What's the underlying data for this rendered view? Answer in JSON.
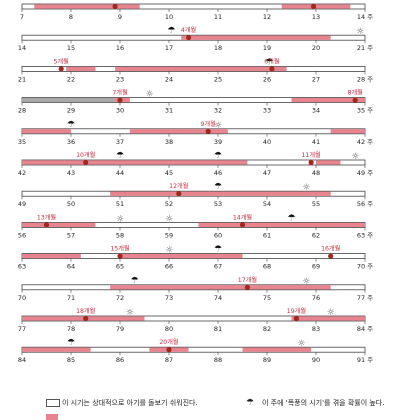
{
  "colors": {
    "pink": "#e8848f",
    "gray": "#a8a8a8",
    "dot": "#a0281e",
    "label": "#c43040",
    "line": "#444"
  },
  "week_unit": "주",
  "rows": [
    {
      "start": 7,
      "ticks": [
        "7",
        "8",
        "9",
        "10",
        "11",
        "12",
        "13",
        "14 주"
      ],
      "segments": [
        {
          "from": 7.25,
          "to": 9.4,
          "kind": "pink"
        },
        {
          "from": 12.3,
          "to": 13.7,
          "kind": "pink"
        }
      ],
      "markers": [
        {
          "at": 8.9,
          "kind": "dot",
          "label": ""
        },
        {
          "at": 12.95,
          "kind": "dot",
          "label": ""
        }
      ]
    },
    {
      "start": 14,
      "ticks": [
        "14",
        "15",
        "16",
        "17",
        "18",
        "19",
        "20",
        "21 주"
      ],
      "segments": [
        {
          "from": 17.25,
          "to": 20.3,
          "kind": "pink"
        }
      ],
      "markers": [
        {
          "at": 17.05,
          "kind": "umbrella"
        },
        {
          "at": 17.4,
          "kind": "dot",
          "label": "4개월"
        },
        {
          "at": 20.9,
          "kind": "sun"
        }
      ]
    },
    {
      "start": 21,
      "ticks": [
        "21",
        "22",
        "23",
        "24",
        "25",
        "26",
        "27",
        "28 주"
      ],
      "segments": [
        {
          "from": 21.9,
          "to": 22.5,
          "kind": "pink"
        },
        {
          "from": 22.9,
          "to": 26.4,
          "kind": "pink"
        }
      ],
      "markers": [
        {
          "at": 21.8,
          "kind": "dot",
          "label": "5개월"
        },
        {
          "at": 26.05,
          "kind": "umbrella"
        },
        {
          "at": 26.1,
          "kind": "dot",
          "label": "6개월"
        }
      ]
    },
    {
      "start": 28,
      "ticks": [
        "28",
        "29",
        "30",
        "31",
        "32",
        "33",
        "34",
        "35 주"
      ],
      "segments": [
        {
          "from": 28.0,
          "to": 29.9,
          "kind": "gray"
        },
        {
          "from": 29.9,
          "to": 30.2,
          "kind": "pink"
        },
        {
          "from": 33.5,
          "to": 35.0,
          "kind": "pink"
        }
      ],
      "markers": [
        {
          "at": 30.0,
          "kind": "dot",
          "label": "7개월"
        },
        {
          "at": 30.6,
          "kind": "sun"
        },
        {
          "at": 34.8,
          "kind": "dot",
          "label": "8개월"
        }
      ]
    },
    {
      "start": 35,
      "ticks": [
        "35",
        "36",
        "37",
        "38",
        "39",
        "40",
        "41",
        "42 주"
      ],
      "segments": [
        {
          "from": 35.0,
          "to": 36.0,
          "kind": "pink"
        },
        {
          "from": 37.2,
          "to": 39.2,
          "kind": "pink"
        },
        {
          "from": 41.3,
          "to": 42.0,
          "kind": "pink"
        }
      ],
      "markers": [
        {
          "at": 36.0,
          "kind": "umbrella"
        },
        {
          "at": 38.8,
          "kind": "dot",
          "label": "9개월"
        },
        {
          "at": 39.0,
          "kind": "sun"
        }
      ]
    },
    {
      "start": 42,
      "ticks": [
        "42",
        "43",
        "44",
        "45",
        "46",
        "47",
        "48",
        "49 주"
      ],
      "segments": [
        {
          "from": 42.0,
          "to": 46.6,
          "kind": "pink"
        },
        {
          "from": 48.0,
          "to": 48.5,
          "kind": "pink"
        }
      ],
      "markers": [
        {
          "at": 43.3,
          "kind": "dot",
          "label": "10개월"
        },
        {
          "at": 44.0,
          "kind": "umbrella"
        },
        {
          "at": 46.0,
          "kind": "umbrella"
        },
        {
          "at": 47.9,
          "kind": "dot",
          "label": "11개월"
        },
        {
          "at": 48.8,
          "kind": "sun"
        }
      ]
    },
    {
      "start": 49,
      "ticks": [
        "49",
        "50",
        "51",
        "52",
        "53",
        "54",
        "55",
        "56 주"
      ],
      "segments": [
        {
          "from": 50.8,
          "to": 55.3,
          "kind": "pink"
        }
      ],
      "markers": [
        {
          "at": 52.2,
          "kind": "dot",
          "label": "12개월"
        },
        {
          "at": 53.0,
          "kind": "umbrella"
        },
        {
          "at": 54.8,
          "kind": "sun"
        }
      ]
    },
    {
      "start": 56,
      "ticks": [
        "56",
        "57",
        "58",
        "59",
        "60",
        "61",
        "62",
        "63 주"
      ],
      "segments": [
        {
          "from": 56.0,
          "to": 57.5,
          "kind": "pink"
        },
        {
          "from": 59.6,
          "to": 63.0,
          "kind": "pink"
        }
      ],
      "markers": [
        {
          "at": 56.5,
          "kind": "dot",
          "label": "13개월"
        },
        {
          "at": 58.0,
          "kind": "sun"
        },
        {
          "at": 59.0,
          "kind": "sun"
        },
        {
          "at": 60.5,
          "kind": "dot",
          "label": "14개월"
        },
        {
          "at": 61.5,
          "kind": "umbrella"
        }
      ]
    },
    {
      "start": 63,
      "ticks": [
        "63",
        "64",
        "65",
        "66",
        "67",
        "68",
        "69",
        "70 주"
      ],
      "segments": [
        {
          "from": 63.0,
          "to": 64.2,
          "kind": "pink"
        },
        {
          "from": 65.0,
          "to": 67.5,
          "kind": "pink"
        }
      ],
      "markers": [
        {
          "at": 65.0,
          "kind": "dot",
          "label": "15개월"
        },
        {
          "at": 66.0,
          "kind": "sun"
        },
        {
          "at": 67.0,
          "kind": "umbrella"
        },
        {
          "at": 69.3,
          "kind": "dot",
          "label": "16개월"
        }
      ]
    },
    {
      "start": 70,
      "ticks": [
        "70",
        "71",
        "72",
        "73",
        "74",
        "75",
        "76",
        "77 주"
      ],
      "segments": [
        {
          "from": 71.8,
          "to": 76.3,
          "kind": "pink"
        }
      ],
      "markers": [
        {
          "at": 72.3,
          "kind": "umbrella"
        },
        {
          "at": 74.6,
          "kind": "dot",
          "label": "17개월"
        },
        {
          "at": 75.8,
          "kind": "sun"
        }
      ]
    },
    {
      "start": 77,
      "ticks": [
        "77",
        "78",
        "79",
        "80",
        "81",
        "82",
        "83",
        "84 주"
      ],
      "segments": [
        {
          "from": 77.0,
          "to": 79.5,
          "kind": "pink"
        },
        {
          "from": 82.5,
          "to": 84.0,
          "kind": "pink"
        }
      ],
      "markers": [
        {
          "at": 78.3,
          "kind": "dot",
          "label": "18개월"
        },
        {
          "at": 79.2,
          "kind": "sun"
        },
        {
          "at": 82.6,
          "kind": "dot",
          "label": "19개월"
        },
        {
          "at": 83.3,
          "kind": "sun"
        }
      ]
    },
    {
      "start": 84,
      "ticks": [
        "84",
        "85",
        "86",
        "87",
        "88",
        "89",
        "90",
        "91 주"
      ],
      "segments": [
        {
          "from": 84.0,
          "to": 85.4,
          "kind": "pink"
        },
        {
          "from": 86.6,
          "to": 87.4,
          "kind": "pink"
        },
        {
          "from": 88.5,
          "to": 89.9,
          "kind": "pink"
        }
      ],
      "markers": [
        {
          "at": 85.0,
          "kind": "umbrella"
        },
        {
          "at": 87.0,
          "kind": "dot",
          "label": "20개월"
        },
        {
          "at": 89.7,
          "kind": "sun"
        }
      ]
    }
  ],
  "legend": {
    "white_bar_text": "이 시기는 상대적으로 아기를 돌보기 쉬워진다.",
    "umbrella_text": "이 주에 '폭풍의 시기'를 겪을 확률이 높다."
  }
}
